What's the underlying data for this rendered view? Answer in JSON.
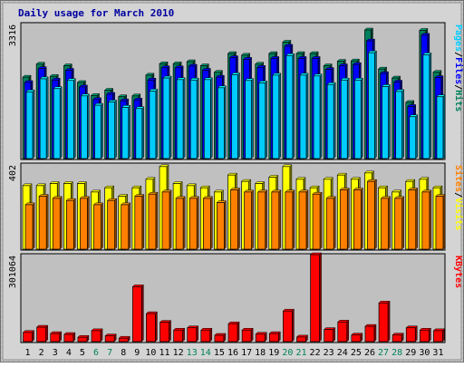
{
  "chart_data": [
    {
      "type": "bar",
      "title": "Daily usage for March 2010",
      "categories": [
        "1",
        "2",
        "3",
        "4",
        "5",
        "6",
        "7",
        "8",
        "9",
        "10",
        "11",
        "12",
        "13",
        "14",
        "15",
        "16",
        "17",
        "18",
        "19",
        "20",
        "21",
        "22",
        "23",
        "24",
        "25",
        "26",
        "27",
        "28",
        "29",
        "30",
        "31"
      ],
      "weekend_days": [
        "6",
        "7",
        "13",
        "14",
        "20",
        "21",
        "27",
        "28"
      ],
      "ymax_label": "3316",
      "ylim": [
        0,
        3316
      ],
      "legend": [
        {
          "label": "Pages",
          "color": "#00ccff"
        },
        {
          "label": "Files",
          "color": "#0000ff"
        },
        {
          "label": "Hits",
          "color": "#00805c"
        }
      ],
      "legend_sep": "/",
      "series": [
        {
          "name": "Hits",
          "color": "#00805c",
          "values": [
            2000,
            2320,
            2020,
            2280,
            1870,
            1550,
            1680,
            1520,
            1540,
            2050,
            2330,
            2330,
            2380,
            2280,
            2120,
            2580,
            2540,
            2320,
            2580,
            2860,
            2580,
            2580,
            2280,
            2390,
            2400,
            3160,
            2200,
            1980,
            1380,
            3150,
            2120
          ]
        },
        {
          "name": "Files",
          "color": "#0000ff",
          "values": [
            1870,
            2210,
            1930,
            2170,
            1760,
            1450,
            1580,
            1420,
            1440,
            1930,
            2230,
            2230,
            2270,
            2170,
            2000,
            2480,
            2440,
            2240,
            2460,
            2760,
            2460,
            2460,
            2190,
            2280,
            2310,
            2890,
            2090,
            1880,
            1280,
            3030,
            1990
          ]
        },
        {
          "name": "Pages",
          "color": "#00ccff",
          "values": [
            1640,
            1960,
            1720,
            1920,
            1540,
            1310,
            1390,
            1260,
            1230,
            1660,
            1980,
            1940,
            1930,
            1940,
            1740,
            2060,
            1920,
            1860,
            2050,
            2530,
            2050,
            2030,
            1820,
            1930,
            1930,
            2600,
            1770,
            1650,
            1030,
            2550,
            1520
          ]
        }
      ]
    },
    {
      "type": "bar",
      "categories": [
        "1",
        "2",
        "3",
        "4",
        "5",
        "6",
        "7",
        "8",
        "9",
        "10",
        "11",
        "12",
        "13",
        "14",
        "15",
        "16",
        "17",
        "18",
        "19",
        "20",
        "21",
        "22",
        "23",
        "24",
        "25",
        "26",
        "27",
        "28",
        "29",
        "30",
        "31"
      ],
      "ymax_label": "402",
      "ylim": [
        0,
        402
      ],
      "legend": [
        {
          "label": "Sites",
          "color": "#ff8000"
        },
        {
          "label": "Visits",
          "color": "#ffff00"
        }
      ],
      "legend_sep": "/",
      "series": [
        {
          "name": "Visits",
          "color": "#ffff00",
          "values": [
            300,
            300,
            310,
            310,
            310,
            270,
            290,
            250,
            290,
            330,
            390,
            310,
            300,
            290,
            270,
            350,
            320,
            310,
            340,
            390,
            330,
            290,
            330,
            350,
            330,
            360,
            290,
            270,
            320,
            330,
            290
          ]
        },
        {
          "name": "Sites",
          "color": "#ff8000",
          "values": [
            210,
            250,
            240,
            230,
            240,
            210,
            230,
            210,
            250,
            260,
            270,
            240,
            240,
            240,
            220,
            280,
            270,
            270,
            270,
            270,
            270,
            260,
            240,
            280,
            280,
            320,
            240,
            240,
            280,
            270,
            250
          ]
        }
      ]
    },
    {
      "type": "bar",
      "categories": [
        "1",
        "2",
        "3",
        "4",
        "5",
        "6",
        "7",
        "8",
        "9",
        "10",
        "11",
        "12",
        "13",
        "14",
        "15",
        "16",
        "17",
        "18",
        "19",
        "20",
        "21",
        "22",
        "23",
        "24",
        "25",
        "26",
        "27",
        "28",
        "29",
        "30",
        "31"
      ],
      "ymax_label": "301064",
      "ylim": [
        0,
        301064
      ],
      "legend": [
        {
          "label": "KBytes",
          "color": "#ff0000"
        }
      ],
      "legend_sep": "/",
      "series": [
        {
          "name": "KBytes",
          "color": "#ff0000",
          "values": [
            32000,
            50000,
            28000,
            25000,
            15000,
            38000,
            20000,
            12000,
            190000,
            97000,
            67000,
            40000,
            48000,
            40000,
            22000,
            62000,
            40000,
            26000,
            28000,
            106000,
            16000,
            301064,
            42000,
            68000,
            23000,
            53000,
            134000,
            23000,
            48000,
            40000,
            38000
          ]
        }
      ]
    }
  ]
}
